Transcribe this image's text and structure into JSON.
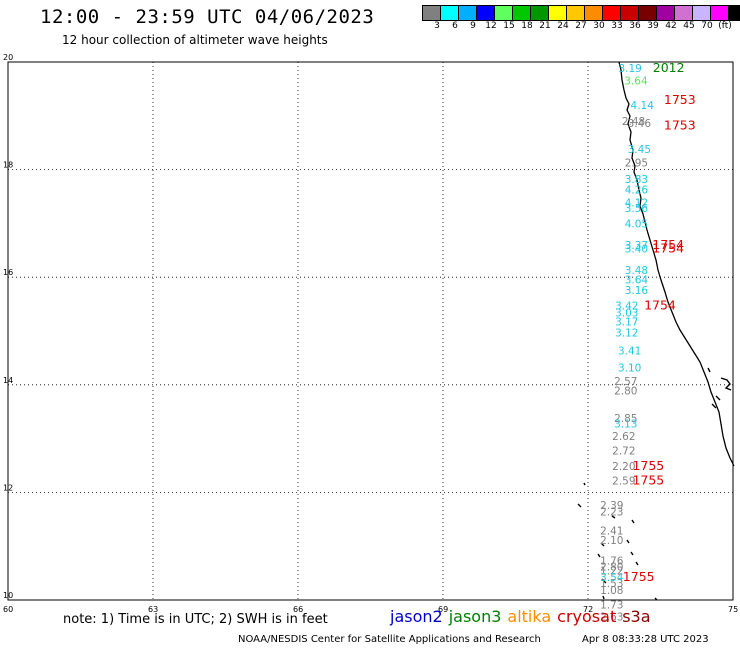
{
  "header": {
    "title": "12:00 - 23:59 UTC 04/06/2023",
    "subtitle": "12 hour collection of altimeter wave heights"
  },
  "colorbar": {
    "colors": [
      "#808080",
      "#00ffff",
      "#00b0ff",
      "#0000ff",
      "#60ff60",
      "#00c800",
      "#009600",
      "#ffff00",
      "#ffc800",
      "#ff8c00",
      "#ff0000",
      "#c80000",
      "#780000",
      "#a000a0",
      "#d070d0",
      "#c8b4ff",
      "#ff00ff",
      "#000000"
    ],
    "ticks": [
      "3",
      "6",
      "9",
      "12",
      "15",
      "18",
      "21",
      "24",
      "27",
      "30",
      "33",
      "36",
      "39",
      "42",
      "45",
      "70",
      "(ft)"
    ]
  },
  "chart_data": {
    "type": "scatter",
    "xlim": [
      60,
      75
    ],
    "ylim": [
      10,
      20
    ],
    "x_ticks": [
      "60",
      "63",
      "66",
      "69",
      "72",
      "75"
    ],
    "y_ticks": [
      "10",
      "12",
      "14",
      "16",
      "18",
      "20"
    ],
    "grid": true,
    "measurements": [
      {
        "x": 72.63,
        "y": 19.81,
        "text": "3.19",
        "color": "#20c8e0"
      },
      {
        "x": 72.75,
        "y": 19.58,
        "text": "3.64",
        "color": "#60e060"
      },
      {
        "x": 72.88,
        "y": 19.13,
        "text": "4.14",
        "color": "#20c8e0"
      },
      {
        "x": 72.7,
        "y": 18.83,
        "text": "2.48",
        "color": "#808080"
      },
      {
        "x": 72.82,
        "y": 18.79,
        "text": "3.46",
        "color": "#808080"
      },
      {
        "x": 72.82,
        "y": 18.31,
        "text": "3.45",
        "color": "#20c8e0"
      },
      {
        "x": 72.76,
        "y": 18.06,
        "text": "2.95",
        "color": "#808080"
      },
      {
        "x": 72.76,
        "y": 17.75,
        "text": "3.83",
        "color": "#20c8e0"
      },
      {
        "x": 72.76,
        "y": 17.56,
        "text": "4.26",
        "color": "#20c8e0"
      },
      {
        "x": 72.76,
        "y": 17.31,
        "text": "4.12",
        "color": "#20c8e0"
      },
      {
        "x": 72.76,
        "y": 17.21,
        "text": "3.56",
        "color": "#20c8e0"
      },
      {
        "x": 72.76,
        "y": 16.92,
        "text": "4.05",
        "color": "#20c8e0"
      },
      {
        "x": 72.76,
        "y": 16.52,
        "text": "3.37",
        "color": "#20c8e0"
      },
      {
        "x": 72.76,
        "y": 16.46,
        "text": "3.40",
        "color": "#20c8e0"
      },
      {
        "x": 72.76,
        "y": 16.06,
        "text": "3.48",
        "color": "#20c8e0"
      },
      {
        "x": 72.76,
        "y": 15.88,
        "text": "3.64",
        "color": "#20c8e0"
      },
      {
        "x": 72.76,
        "y": 15.69,
        "text": "3.16",
        "color": "#20c8e0"
      },
      {
        "x": 72.56,
        "y": 15.4,
        "text": "3.42",
        "color": "#20c8e0"
      },
      {
        "x": 72.56,
        "y": 15.27,
        "text": "3.03",
        "color": "#20c8e0"
      },
      {
        "x": 72.56,
        "y": 15.1,
        "text": "3.17",
        "color": "#20c8e0"
      },
      {
        "x": 72.56,
        "y": 14.9,
        "text": "3.12",
        "color": "#20c8e0"
      },
      {
        "x": 72.62,
        "y": 14.56,
        "text": "3.41",
        "color": "#20c8e0"
      },
      {
        "x": 72.62,
        "y": 14.25,
        "text": "3.10",
        "color": "#20c8e0"
      },
      {
        "x": 72.54,
        "y": 14.0,
        "text": "2.57",
        "color": "#808080"
      },
      {
        "x": 72.54,
        "y": 13.82,
        "text": "2.80",
        "color": "#808080"
      },
      {
        "x": 72.54,
        "y": 13.31,
        "text": "2.85",
        "color": "#808080"
      },
      {
        "x": 72.54,
        "y": 13.21,
        "text": "3.13",
        "color": "#20c8e0"
      },
      {
        "x": 72.5,
        "y": 12.97,
        "text": "2.62",
        "color": "#808080"
      },
      {
        "x": 72.5,
        "y": 12.7,
        "text": "2.72",
        "color": "#808080"
      },
      {
        "x": 72.5,
        "y": 12.42,
        "text": "2.20",
        "color": "#808080"
      },
      {
        "x": 72.5,
        "y": 12.15,
        "text": "2.59",
        "color": "#808080"
      },
      {
        "x": 72.25,
        "y": 11.69,
        "text": "2.39",
        "color": "#808080"
      },
      {
        "x": 72.25,
        "y": 11.57,
        "text": "2.23",
        "color": "#808080"
      },
      {
        "x": 72.25,
        "y": 11.22,
        "text": "2.41",
        "color": "#808080"
      },
      {
        "x": 72.25,
        "y": 11.04,
        "text": "2.10",
        "color": "#808080"
      },
      {
        "x": 72.25,
        "y": 10.66,
        "text": "1.76",
        "color": "#808080"
      },
      {
        "x": 72.25,
        "y": 10.47,
        "text": "1.22",
        "color": "#808080"
      },
      {
        "x": 72.25,
        "y": 10.24,
        "text": "1.53",
        "color": "#808080"
      },
      {
        "x": 72.25,
        "y": 10.11,
        "text": "1.08",
        "color": "#808080"
      },
      {
        "x": 72.25,
        "y": 9.84,
        "text": "1.73",
        "color": "#808080"
      },
      {
        "x": 72.25,
        "y": 9.62,
        "text": "2.63",
        "color": "#808080"
      },
      {
        "x": 72.25,
        "y": 10.55,
        "text": "2.80",
        "color": "#808080"
      },
      {
        "x": 72.25,
        "y": 10.35,
        "text": "3.54",
        "color": "#20c8e0"
      }
    ],
    "time_labels": [
      {
        "x": 73.34,
        "y": 19.81,
        "text": "2012",
        "color": "#008000"
      },
      {
        "x": 73.57,
        "y": 19.22,
        "text": "1753",
        "color": "#e00000"
      },
      {
        "x": 73.57,
        "y": 18.75,
        "text": "1753",
        "color": "#e00000"
      },
      {
        "x": 73.33,
        "y": 16.52,
        "text": "1754",
        "color": "#e00000"
      },
      {
        "x": 73.33,
        "y": 16.46,
        "text": "1754",
        "color": "#e00000"
      },
      {
        "x": 73.16,
        "y": 15.4,
        "text": "1754",
        "color": "#e00000"
      },
      {
        "x": 72.92,
        "y": 12.42,
        "text": "1755",
        "color": "#e00000"
      },
      {
        "x": 72.92,
        "y": 12.15,
        "text": "1755",
        "color": "#e00000"
      },
      {
        "x": 72.72,
        "y": 10.35,
        "text": "1755",
        "color": "#e00000"
      }
    ]
  },
  "footer": {
    "note": "note: 1) Time is in UTC; 2) SWH is in feet",
    "legend": [
      {
        "label": "jason2",
        "color": "#0000cc"
      },
      {
        "label": "jason3",
        "color": "#008000"
      },
      {
        "label": "altika",
        "color": "#ff8c00"
      },
      {
        "label": "cryosat",
        "color": "#cc0000"
      },
      {
        "label": "s3a",
        "color": "#880000"
      }
    ],
    "credit": "NOAA/NESDIS Center for Satellite Applications and Research",
    "timestamp": "Apr  8 08:33:28 UTC 2023"
  }
}
